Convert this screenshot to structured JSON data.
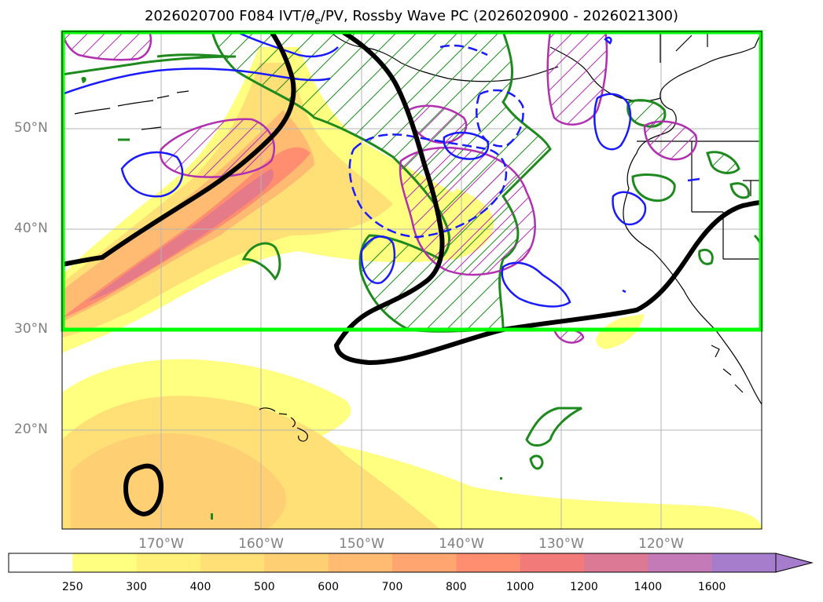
{
  "title": {
    "prefix": "2026020700 F084 IVT/",
    "theta_symbol": "θ",
    "theta_sub": "e",
    "suffix": "/PV, Rossby Wave PC (2026020900 - 2026021300)"
  },
  "axes": {
    "lat_labels": [
      "50°N",
      "40°N",
      "30°N",
      "20°N"
    ],
    "lon_labels": [
      "170°W",
      "160°W",
      "150°W",
      "140°W",
      "130°W",
      "120°W"
    ]
  },
  "colorbar": {
    "labels": [
      "250",
      "300",
      "400",
      "500",
      "600",
      "700",
      "800",
      "1000",
      "1200",
      "1400",
      "1600"
    ],
    "colors": [
      "#ffff80",
      "#fff07a",
      "#ffe077",
      "#ffcf74",
      "#ffbb72",
      "#ffa670",
      "#ff8e70",
      "#f27a78",
      "#dc7a96",
      "#c37ab7",
      "#a67ccc"
    ]
  }
}
